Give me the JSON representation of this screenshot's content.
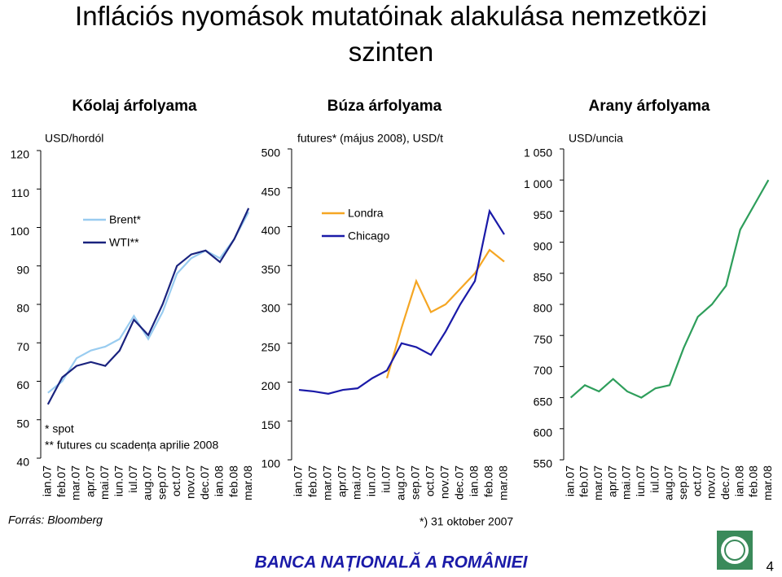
{
  "title": "Inflációs nyomások mutatóinak alakulása nemzetközi szinten",
  "source": "Forrás: Bloomberg",
  "footer": "BANCA NAȚIONALĂ A ROMÂNIEI",
  "page_number": "4",
  "chart_data": [
    {
      "type": "line",
      "title": "Kőolaj árfolyama",
      "y_label": "USD/hordól",
      "categories": [
        "ian.07",
        "feb.07",
        "mar.07",
        "apr.07",
        "mai.07",
        "iun.07",
        "iul.07",
        "aug.07",
        "sep.07",
        "oct.07",
        "nov.07",
        "dec.07",
        "ian.08",
        "feb.08",
        "mar.08"
      ],
      "series": [
        {
          "name": "Brent*",
          "color": "#99ccf0",
          "values": [
            57,
            60,
            66,
            68,
            69,
            71,
            77,
            71,
            78,
            88,
            92,
            94,
            92,
            97,
            104
          ]
        },
        {
          "name": "WTI**",
          "color": "#1a237e",
          "values": [
            54,
            61,
            64,
            65,
            64,
            68,
            76,
            72,
            80,
            90,
            93,
            94,
            91,
            97,
            105
          ]
        }
      ],
      "ylim": [
        40,
        120
      ],
      "yticks": [
        40,
        50,
        60,
        70,
        80,
        90,
        100,
        110,
        120
      ],
      "legend": "upper left",
      "notes": [
        "* spot",
        "** futures cu scadența aprilie 2008"
      ]
    },
    {
      "type": "line",
      "title": "Búza árfolyama",
      "y_label": "futures* (május 2008), USD/t",
      "categories": [
        "ian.07",
        "feb.07",
        "mar.07",
        "apr.07",
        "mai.07",
        "iun.07",
        "iul.07",
        "aug.07",
        "sep.07",
        "oct.07",
        "nov.07",
        "dec.07",
        "ian.08",
        "feb.08",
        "mar.08"
      ],
      "series": [
        {
          "name": "Londra",
          "color": "#f5a623",
          "values": [
            null,
            null,
            null,
            null,
            null,
            null,
            205,
            270,
            330,
            290,
            300,
            320,
            340,
            370,
            355
          ]
        },
        {
          "name": "Chicago",
          "color": "#1a1aa8",
          "values": [
            190,
            188,
            185,
            190,
            192,
            205,
            215,
            250,
            245,
            235,
            265,
            300,
            330,
            420,
            390
          ]
        }
      ],
      "ylim": [
        100,
        500
      ],
      "yticks": [
        100,
        150,
        200,
        250,
        300,
        350,
        400,
        450,
        500
      ],
      "legend": "upper left",
      "notes": [
        "*) 31 oktober 2007"
      ]
    },
    {
      "type": "line",
      "title": "Arany árfolyama",
      "y_label": "USD/uncia",
      "categories": [
        "ian.07",
        "feb.07",
        "mar.07",
        "apr.07",
        "mai.07",
        "iun.07",
        "iul.07",
        "aug.07",
        "sep.07",
        "oct.07",
        "nov.07",
        "dec.07",
        "ian.08",
        "feb.08",
        "mar.08"
      ],
      "series": [
        {
          "color": "#2e9e5b",
          "values": [
            650,
            670,
            660,
            680,
            660,
            650,
            665,
            670,
            730,
            780,
            800,
            830,
            920,
            960,
            1000
          ]
        }
      ],
      "ylim": [
        550,
        1050
      ],
      "yticks": [
        550,
        600,
        650,
        700,
        750,
        800,
        850,
        900,
        950,
        {
          "value": 1000,
          "label": "1 000"
        },
        {
          "value": 1050,
          "label": "1 050"
        }
      ]
    }
  ]
}
